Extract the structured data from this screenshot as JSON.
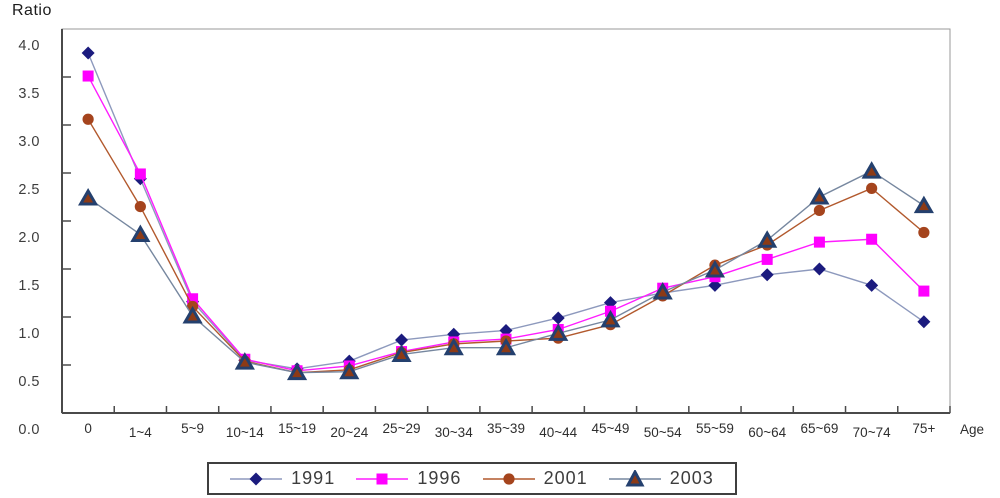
{
  "title": "Ratio",
  "x_axis_title": "Age",
  "chart_data": {
    "type": "line",
    "title": "Ratio",
    "xlabel": "Age",
    "ylabel": "Ratio",
    "ylim": [
      0.0,
      4.0
    ],
    "ytick_step": 0.5,
    "yticklabels": [
      "0.0",
      "0.5",
      "1.0",
      "1.5",
      "2.0",
      "2.5",
      "3.0",
      "3.5",
      "4.0"
    ],
    "grid": false,
    "legend_position": "bottom",
    "categories": [
      "0",
      "1~4",
      "5~9",
      "10~14",
      "15~19",
      "20~24",
      "25~29",
      "30~34",
      "35~39",
      "40~44",
      "45~49",
      "50~54",
      "55~59",
      "60~64",
      "65~69",
      "70~74",
      "75+"
    ],
    "series": [
      {
        "name": "1991",
        "marker": "diamond",
        "marker_color": "#1b1b7e",
        "line_color": "#8d99bd",
        "values": [
          3.75,
          2.44,
          1.16,
          0.55,
          0.46,
          0.54,
          0.76,
          0.82,
          0.86,
          0.99,
          1.15,
          1.25,
          1.33,
          1.44,
          1.5,
          1.33,
          0.95
        ]
      },
      {
        "name": "1996",
        "marker": "square",
        "marker_color": "#ff00ff",
        "line_color": "#ff1cff",
        "values": [
          3.51,
          2.49,
          1.19,
          0.56,
          0.44,
          0.49,
          0.64,
          0.74,
          0.77,
          0.87,
          1.06,
          1.3,
          1.42,
          1.6,
          1.78,
          1.81,
          1.27
        ]
      },
      {
        "name": "2001",
        "marker": "circle",
        "marker_color": "#a5441d",
        "line_color": "#b2592d",
        "values": [
          3.06,
          2.15,
          1.11,
          0.54,
          0.42,
          0.45,
          0.63,
          0.72,
          0.75,
          0.78,
          0.92,
          1.22,
          1.54,
          1.75,
          2.11,
          2.34,
          1.88
        ]
      },
      {
        "name": "2003",
        "marker": "triangle",
        "marker_color": "#8c3a16",
        "marker_edge_color": "#24406e",
        "line_color": "#76879f",
        "values": [
          2.24,
          1.86,
          1.01,
          0.53,
          0.42,
          0.43,
          0.61,
          0.68,
          0.68,
          0.83,
          0.97,
          1.26,
          1.49,
          1.8,
          2.25,
          2.52,
          2.16
        ]
      }
    ]
  },
  "legend": {
    "items": [
      "1991",
      "1996",
      "2001",
      "2003"
    ]
  }
}
